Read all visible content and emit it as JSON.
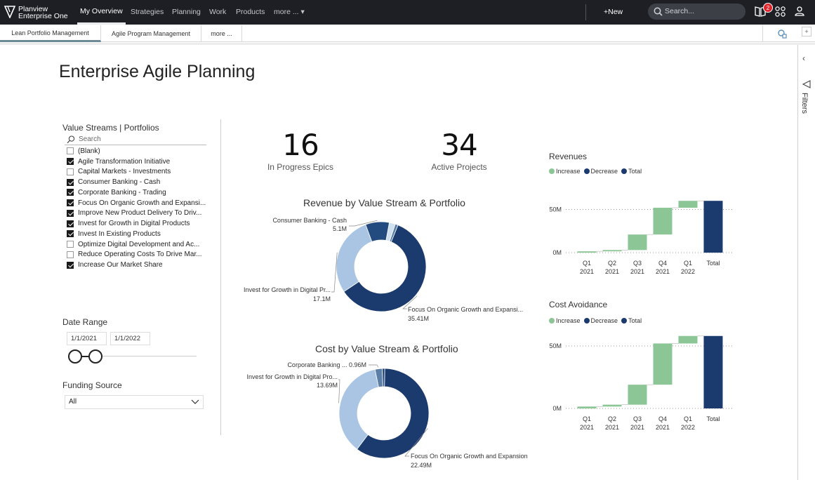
{
  "app": {
    "logo_line1": "Planview",
    "logo_line2": "Enterprise One",
    "nav": [
      "My Overview",
      "Strategies",
      "Planning",
      "Work",
      "Products",
      "more ... ▾"
    ],
    "new_label": "+New",
    "search_placeholder": "Search...",
    "notification_count": "2"
  },
  "tabs": [
    "Lean Portfolio Management",
    "Agile Program Management",
    "more ..."
  ],
  "filters_label": "Filters",
  "page_title": "Enterprise Agile Planning",
  "slicer": {
    "title": "Value Streams | Portfolios",
    "search_placeholder": "Search",
    "items": [
      {
        "label": "(Blank)",
        "checked": false
      },
      {
        "label": "Agile Transformation Initiative",
        "checked": true
      },
      {
        "label": "Capital Markets - Investments",
        "checked": false
      },
      {
        "label": "Consumer Banking - Cash",
        "checked": true
      },
      {
        "label": "Corporate Banking - Trading",
        "checked": true
      },
      {
        "label": "Focus On Organic Growth and Expansi...",
        "checked": true
      },
      {
        "label": "Improve New Product Delivery To Driv...",
        "checked": true
      },
      {
        "label": "Invest for Growth in Digital Products",
        "checked": true
      },
      {
        "label": "Invest In Existing Products",
        "checked": true
      },
      {
        "label": "Optimize Digital Development and Ac...",
        "checked": false
      },
      {
        "label": "Reduce Operating Costs To Drive Mar...",
        "checked": false
      },
      {
        "label": "Increase Our Market Share",
        "checked": true
      }
    ]
  },
  "date_range": {
    "title": "Date Range",
    "start": "1/1/2021",
    "end": "1/1/2022"
  },
  "funding": {
    "title": "Funding Source",
    "value": "All"
  },
  "kpis": [
    {
      "value": "16",
      "label": "In Progress Epics"
    },
    {
      "value": "34",
      "label": "Active Projects"
    }
  ],
  "colors": {
    "dark_navy": "#1b3a6e",
    "mid_blue": "#244b80",
    "light_blue": "#a9c5e3",
    "pale_blue": "#cfe0f0",
    "green": "#8cc596"
  },
  "chart_data": [
    {
      "type": "pie",
      "title": "Revenue by Value Stream & Portfolio",
      "donut": true,
      "slices": [
        {
          "name": "Focus On Organic Growth and Expansi...",
          "value": 35.41,
          "label": "35.41M",
          "color": "#1b3a6e"
        },
        {
          "name": "Invest for Growth in Digital Pr...",
          "value": 17.1,
          "label": "17.1M",
          "color": "#a9c5e3"
        },
        {
          "name": "Consumer Banking - Cash",
          "value": 5.1,
          "label": "5.1M",
          "color": "#244b80"
        },
        {
          "name": "",
          "value": 1.3,
          "label": "",
          "color": "#cfe0f0"
        },
        {
          "name": "",
          "value": 0.6,
          "label": "",
          "color": "#5c7fa8"
        }
      ]
    },
    {
      "type": "pie",
      "title": "Cost by Value Stream & Portfolio",
      "donut": true,
      "slices": [
        {
          "name": "Focus On Organic Growth and Expansion",
          "value": 22.49,
          "label": "22.49M",
          "color": "#1b3a6e"
        },
        {
          "name": "Invest for Growth in Digital Pro...",
          "value": 13.69,
          "label": "13.69M",
          "color": "#a9c5e3"
        },
        {
          "name": "Corporate Banking ...",
          "value": 0.96,
          "label": "0.96M",
          "color": "#5c7fa8"
        },
        {
          "name": "",
          "value": 0.35,
          "label": "",
          "color": "#244b80"
        }
      ]
    },
    {
      "type": "bar",
      "subtype": "waterfall",
      "title": "Revenues",
      "legend": [
        "Increase",
        "Decrease",
        "Total"
      ],
      "categories": [
        [
          "Q1",
          "2021"
        ],
        [
          "Q2",
          "2021"
        ],
        [
          "Q3",
          "2021"
        ],
        [
          "Q4",
          "2021"
        ],
        [
          "Q1",
          "2022"
        ],
        [
          "Total"
        ]
      ],
      "deltas": [
        1.5,
        1.5,
        18,
        31,
        8
      ],
      "total": 60,
      "yticks": [
        {
          "value": 0,
          "label": "0M"
        },
        {
          "value": 50,
          "label": "50M"
        }
      ],
      "ylim": [
        0,
        60
      ]
    },
    {
      "type": "bar",
      "subtype": "waterfall",
      "title": "Cost Avoidance",
      "legend": [
        "Increase",
        "Decrease",
        "Total"
      ],
      "categories": [
        [
          "Q1",
          "2021"
        ],
        [
          "Q2",
          "2021"
        ],
        [
          "Q3",
          "2021"
        ],
        [
          "Q4",
          "2021"
        ],
        [
          "Q1",
          "2022"
        ],
        [
          "Total"
        ]
      ],
      "deltas": [
        1.5,
        1.5,
        16,
        33,
        6
      ],
      "total": 58,
      "yticks": [
        {
          "value": 0,
          "label": "0M"
        },
        {
          "value": 50,
          "label": "50M"
        }
      ],
      "ylim": [
        0,
        58
      ]
    }
  ]
}
